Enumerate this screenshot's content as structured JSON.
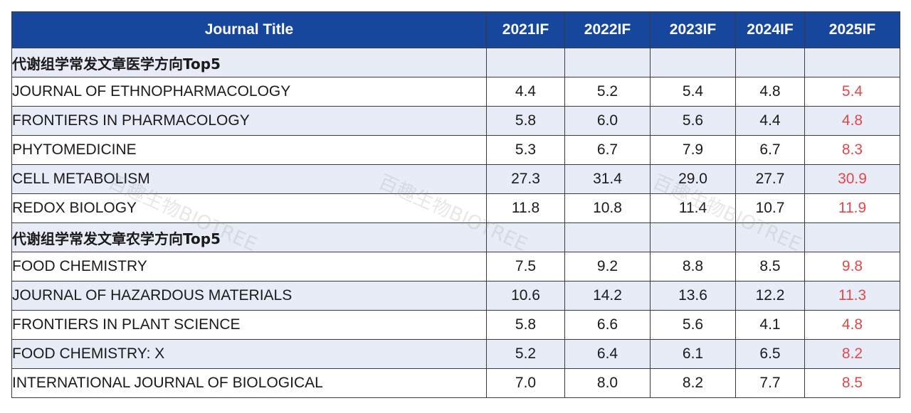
{
  "header": {
    "title": "Journal Title",
    "years": [
      "2021IF",
      "2022IF",
      "2023IF",
      "2024IF",
      "2025IF"
    ]
  },
  "rows": [
    {
      "type": "section",
      "title": "代谢组学常发文章医学方向Top5",
      "values": [
        "",
        "",
        "",
        "",
        ""
      ]
    },
    {
      "type": "journal",
      "title": "JOURNAL OF ETHNOPHARMACOLOGY",
      "values": [
        "4.4",
        "5.2",
        "5.4",
        "4.8",
        "5.4"
      ]
    },
    {
      "type": "journal",
      "title": "FRONTIERS IN PHARMACOLOGY",
      "values": [
        "5.8",
        "6.0",
        "5.6",
        "4.4",
        "4.8"
      ]
    },
    {
      "type": "journal",
      "title": "PHYTOMEDICINE",
      "values": [
        "5.3",
        "6.7",
        "7.9",
        "6.7",
        "8.3"
      ]
    },
    {
      "type": "journal",
      "title": "CELL METABOLISM",
      "values": [
        "27.3",
        "31.4",
        "29.0",
        "27.7",
        "30.9"
      ]
    },
    {
      "type": "journal",
      "title": "REDOX BIOLOGY",
      "values": [
        "11.8",
        "10.8",
        "11.4",
        "10.7",
        "11.9"
      ]
    },
    {
      "type": "section",
      "title": "代谢组学常发文章农学方向Top5",
      "values": [
        "",
        "",
        "",
        "",
        ""
      ]
    },
    {
      "type": "journal",
      "title": "FOOD CHEMISTRY",
      "values": [
        "7.5",
        "9.2",
        "8.8",
        "8.5",
        "9.8"
      ]
    },
    {
      "type": "journal",
      "title": "JOURNAL OF HAZARDOUS MATERIALS",
      "values": [
        "10.6",
        "14.2",
        "13.6",
        "12.2",
        "11.3"
      ]
    },
    {
      "type": "journal",
      "title": "FRONTIERS IN PLANT SCIENCE",
      "values": [
        "5.8",
        "6.6",
        "5.6",
        "4.1",
        "4.8"
      ]
    },
    {
      "type": "journal",
      "title": "FOOD CHEMISTRY: X",
      "values": [
        "5.2",
        "6.4",
        "6.1",
        "6.5",
        "8.2"
      ]
    },
    {
      "type": "journal",
      "title": "INTERNATIONAL JOURNAL OF BIOLOGICAL",
      "values": [
        "7.0",
        "8.0",
        "8.2",
        "7.7",
        "8.5"
      ]
    }
  ],
  "watermarks": [
    "百趣生物BIOTREE",
    "百趣生物BIOTREE",
    "百趣生物BIOTREE"
  ],
  "colors": {
    "header_bg": "#17479d",
    "header_text": "#ffffff",
    "latest_if_text": "#e0484a",
    "stripe_bg": "#e8ecf7"
  }
}
